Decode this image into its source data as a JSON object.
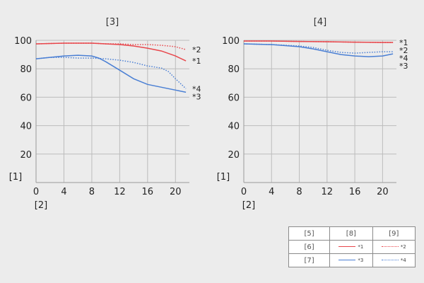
{
  "legend": {
    "header": [
      "[5]",
      "[8]",
      "[9]"
    ],
    "rows": [
      {
        "label": "[6]",
        "solid": "*1",
        "dotted": "*2",
        "color": "#e8474c"
      },
      {
        "label": "[7]",
        "solid": "*3",
        "dotted": "*4",
        "color": "#4a7fd4"
      }
    ]
  },
  "chart_data": [
    {
      "type": "line",
      "title": "[3]",
      "ylabel": "[1]",
      "xlabel": "[2]",
      "xlim": [
        0,
        22
      ],
      "ylim": [
        0,
        100
      ],
      "xticks": [
        0,
        4,
        8,
        12,
        16,
        20
      ],
      "yticks": [
        20,
        40,
        60,
        80,
        100
      ],
      "grid": true,
      "series": [
        {
          "name": "*1",
          "color": "#e8474c",
          "style": "solid",
          "x": [
            0,
            4,
            8,
            10,
            12,
            14,
            16,
            18,
            20,
            21.5
          ],
          "y": [
            97.5,
            98,
            98,
            97.5,
            97,
            96,
            94.5,
            92.5,
            89,
            85.5
          ]
        },
        {
          "name": "*2",
          "color": "#e8474c",
          "style": "dotted",
          "x": [
            0,
            4,
            8,
            10,
            12,
            14,
            16,
            18,
            20,
            21.5
          ],
          "y": [
            97.5,
            98,
            98,
            97.5,
            97.5,
            97,
            97,
            96.5,
            95.5,
            93.5
          ]
        },
        {
          "name": "*3",
          "color": "#4a7fd4",
          "style": "solid",
          "x": [
            0,
            2,
            4,
            6,
            8,
            9,
            10,
            12,
            14,
            16,
            18,
            20,
            21.5
          ],
          "y": [
            87,
            88,
            89,
            89.5,
            89,
            87.5,
            85,
            79,
            73,
            69,
            67,
            65,
            63.5
          ]
        },
        {
          "name": "*4",
          "color": "#4a7fd4",
          "style": "dotted",
          "x": [
            0,
            2,
            4,
            6,
            8,
            10,
            12,
            14,
            16,
            18,
            19,
            20,
            21.5
          ],
          "y": [
            87,
            88,
            88,
            87.5,
            87.5,
            87,
            86,
            84.5,
            82,
            80.5,
            78,
            73,
            66
          ]
        }
      ]
    },
    {
      "type": "line",
      "title": "[4]",
      "ylabel": "[1]",
      "xlabel": "[2]",
      "xlim": [
        0,
        22
      ],
      "ylim": [
        0,
        100
      ],
      "xticks": [
        0,
        4,
        8,
        12,
        16,
        20
      ],
      "yticks": [
        20,
        40,
        60,
        80,
        100
      ],
      "grid": true,
      "series": [
        {
          "name": "*1",
          "color": "#e8474c",
          "style": "solid",
          "x": [
            0,
            4,
            8,
            12,
            16,
            20,
            21.5
          ],
          "y": [
            99.5,
            99.5,
            99.2,
            99,
            98.7,
            98.5,
            98.5
          ]
        },
        {
          "name": "*2",
          "color": "#e8474c",
          "style": "dotted",
          "x": [
            0,
            4,
            8,
            12,
            16,
            20,
            21.5
          ],
          "y": [
            99.5,
            99.5,
            99.2,
            99,
            98.7,
            98.5,
            98.5
          ]
        },
        {
          "name": "*3",
          "color": "#4a7fd4",
          "style": "solid",
          "x": [
            0,
            4,
            8,
            10,
            12,
            14,
            16,
            18,
            20,
            21.5
          ],
          "y": [
            97.5,
            97,
            95.5,
            94,
            92,
            90,
            89,
            88.5,
            89,
            90.5
          ]
        },
        {
          "name": "*4",
          "color": "#4a7fd4",
          "style": "dotted",
          "x": [
            0,
            4,
            8,
            10,
            12,
            14,
            16,
            18,
            20,
            21.5
          ],
          "y": [
            97.5,
            97,
            96,
            95,
            93,
            91.5,
            91,
            91.5,
            92,
            92
          ]
        }
      ]
    }
  ]
}
